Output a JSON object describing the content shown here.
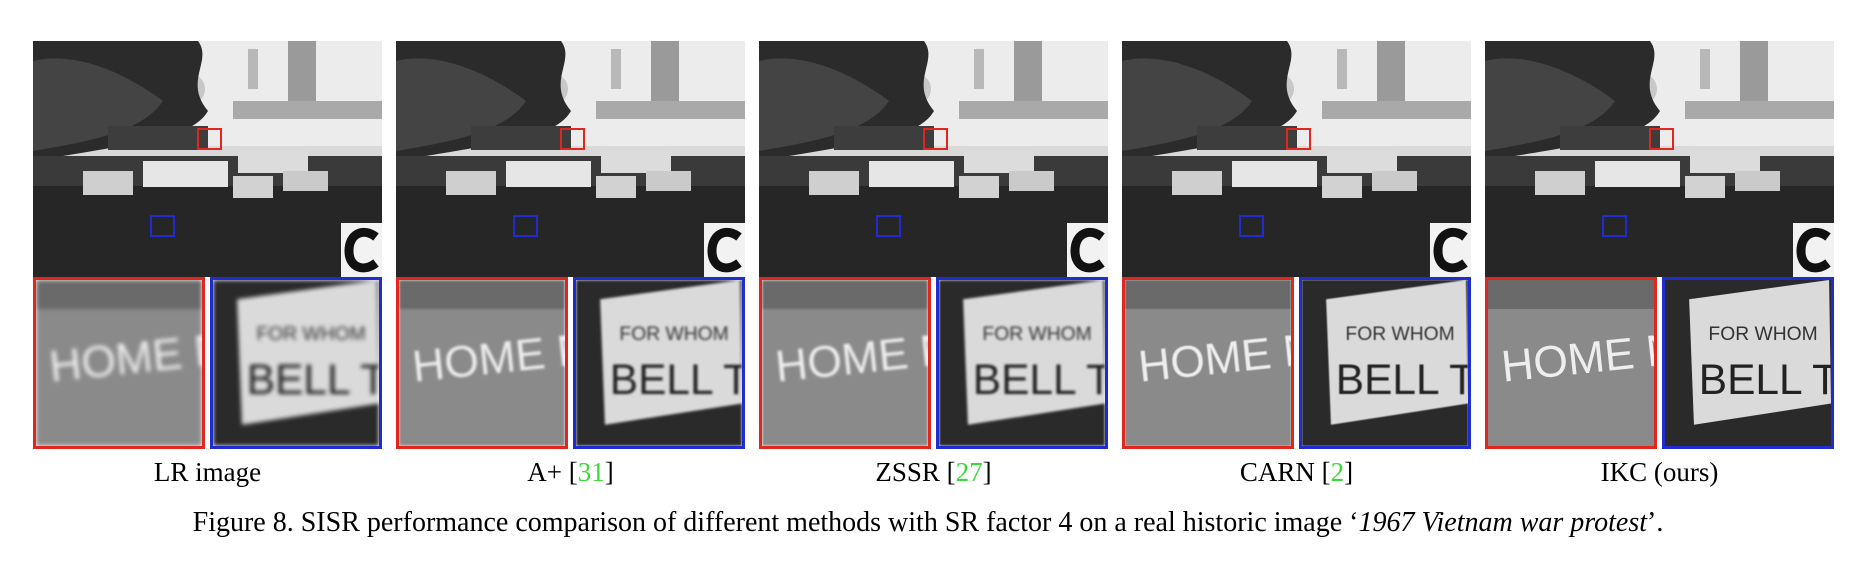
{
  "panels": [
    {
      "method": "LR image",
      "citation": "",
      "suffix": ""
    },
    {
      "method": "A+ [",
      "citation": "31",
      "suffix": "]"
    },
    {
      "method": "ZSSR [",
      "citation": "27",
      "suffix": "]"
    },
    {
      "method": "CARN [",
      "citation": "2",
      "suffix": "]"
    },
    {
      "method": "IKC (ours)",
      "citation": "",
      "suffix": ""
    }
  ],
  "caption": {
    "prefix": "Figure 8. SISR performance comparison of different methods with SR factor 4 on a real historic image ‘",
    "italic": "1967 Vietnam war protest",
    "suffix": "’."
  },
  "colors": {
    "red_box": "#e0261f",
    "blue_box": "#1f2ccf",
    "citation": "#3bd83b"
  }
}
